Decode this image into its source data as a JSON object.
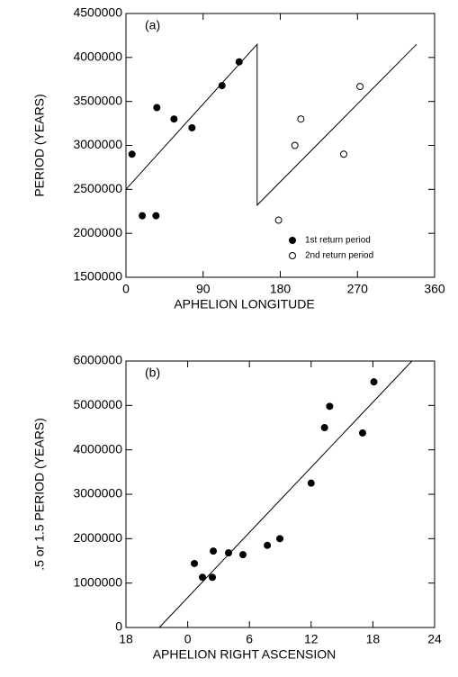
{
  "chart_data": [
    {
      "type": "scatter",
      "annotation": "(a)",
      "xlabel": "APHELION LONGITUDE",
      "ylabel": "PERIOD (YEARS)",
      "xlim": [
        0,
        360
      ],
      "xticks": [
        0,
        90,
        180,
        270,
        360
      ],
      "ylim": [
        1500000,
        4500000
      ],
      "yticks": [
        1500000,
        2000000,
        2500000,
        3000000,
        3500000,
        4000000,
        4500000
      ],
      "legend": "lower right",
      "series": [
        {
          "name": "1st return period",
          "color": "#000000",
          "marker_fill": "#000000",
          "x": [
            7,
            19,
            35,
            36,
            56,
            77,
            112,
            132
          ],
          "values": [
            2900000,
            2200000,
            2200000,
            3430000,
            3300000,
            3200000,
            3680000,
            3950000
          ]
        },
        {
          "name": "2nd return period",
          "color": "#000000",
          "marker_fill": "none",
          "x": [
            178,
            197,
            204,
            254,
            273
          ],
          "values": [
            2150000,
            3000000,
            3300000,
            2900000,
            3670000
          ]
        }
      ],
      "lines": [
        {
          "color": "#000000",
          "x": [
            0,
            153,
            153,
            339
          ],
          "values": [
            2500000,
            4150000,
            2320000,
            4150000
          ]
        }
      ]
    },
    {
      "type": "scatter",
      "annotation": "(b)",
      "xlabel": "APHELION RIGHT ASCENSION",
      "ylabel": ".5 or 1.5 PERIOD (YEARS)",
      "xlim": [
        -6,
        24
      ],
      "xticks": [
        {
          "value": -6,
          "label": "18"
        },
        0,
        6,
        12,
        18,
        24
      ],
      "ylim": [
        0,
        6000000
      ],
      "yticks": [
        0,
        1000000,
        2000000,
        3000000,
        4000000,
        5000000,
        6000000
      ],
      "series": [
        {
          "color": "#000000",
          "marker_fill": "#000000",
          "x": [
            0.65,
            1.44,
            2.49,
            2.4,
            3.97,
            5.37,
            7.74,
            8.96,
            12.0,
            13.3,
            13.8,
            17.0,
            18.1
          ],
          "values": [
            1440000,
            1130000,
            1720000,
            1130000,
            1680000,
            1640000,
            1850000,
            2000000,
            3250000,
            4500000,
            4980000,
            4380000,
            5530000
          ]
        }
      ],
      "lines": [
        {
          "color": "#000000",
          "x": [
            -2.76,
            21.8
          ],
          "values": [
            0,
            6000000
          ]
        }
      ]
    }
  ]
}
